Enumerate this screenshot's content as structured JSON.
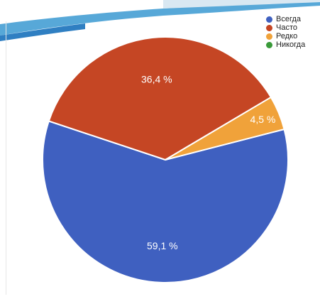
{
  "chart_data": {
    "type": "pie",
    "title": "",
    "categories": [
      "Всегда",
      "Часто",
      "Редко",
      "Никогда"
    ],
    "values": [
      59.1,
      36.4,
      4.5,
      0
    ],
    "value_labels": [
      "59,1 %",
      "36,4 %",
      "4,5 %",
      ""
    ],
    "colors": [
      "#3f60c0",
      "#c54624",
      "#f0a23a",
      "#3a9a3a"
    ],
    "legend_position": "top-right",
    "start_angle_deg": 75.6,
    "direction": "clockwise"
  },
  "legend": {
    "items": [
      {
        "label": "Всегда",
        "color": "#3f60c0"
      },
      {
        "label": "Часто",
        "color": "#c54624"
      },
      {
        "label": "Редко",
        "color": "#f0a23a"
      },
      {
        "label": "Никогда",
        "color": "#3a9a3a"
      }
    ]
  }
}
